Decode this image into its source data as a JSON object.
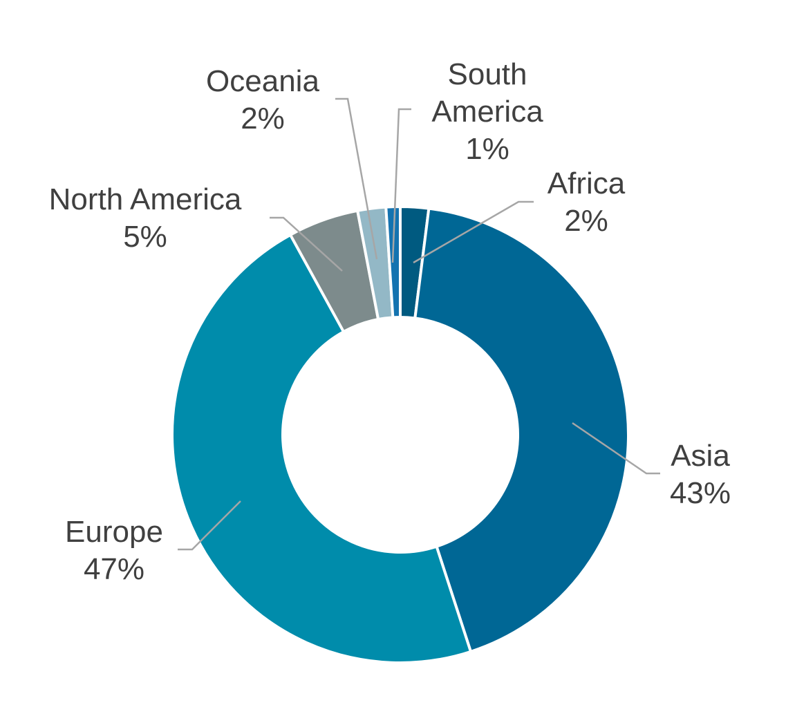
{
  "chart_data": {
    "type": "donut",
    "categories": [
      "Africa",
      "Asia",
      "Europe",
      "North America",
      "Oceania",
      "South America"
    ],
    "values": [
      2,
      43,
      47,
      5,
      2,
      1
    ],
    "value_labels": [
      "2%",
      "43%",
      "47%",
      "5%",
      "2%",
      "1%"
    ],
    "colors": [
      "#005a80",
      "#006795",
      "#008cab",
      "#7d8b8c",
      "#93b8c6",
      "#1473b0"
    ]
  }
}
